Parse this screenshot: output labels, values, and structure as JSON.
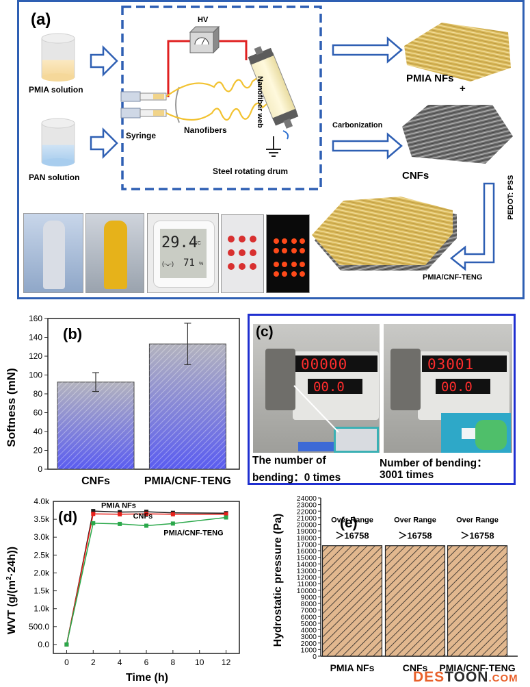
{
  "panel_a": {
    "label": "(a)",
    "pmia_solution": "PMIA solution",
    "pan_solution": "PAN solution",
    "hv": "HV",
    "syringe": "Syringe",
    "nanofibers": "Nanofibers",
    "nanofiber_web": "Nanofiber web",
    "steel_drum": "Steel rotating drum",
    "pmia_nfs": "PMIA NFs",
    "plus": "+",
    "carbonization": "Carbonization",
    "cnfs": "CNFs",
    "pedot": "PEDOT: PSS",
    "teng": "PMIA/CNF-TENG",
    "thermo_temp": "29.4",
    "thermo_temp_unit": "°C",
    "thermo_face": "(-ᴗ-)",
    "thermo_hum": "71",
    "thermo_hum_unit": "%"
  },
  "panel_c": {
    "label": "(c)",
    "left_counter": "00000",
    "left_sub": "00.0",
    "right_counter": "03001",
    "right_sub": "00.0",
    "caption_left_1": "The number of",
    "caption_left_2": "bending：0 times",
    "caption_right_1": "Number of bending：",
    "caption_right_2": "3001 times"
  },
  "chart_data": [
    {
      "panel": "(b)",
      "type": "bar",
      "categories": [
        "CNFs",
        "PMIA/CNF-TENG"
      ],
      "values": [
        92.5,
        133
      ],
      "errors": [
        10,
        22
      ],
      "ylabel": "Softness (mN)",
      "ylim": [
        0,
        160
      ],
      "yticks": [
        "0",
        "20",
        "40",
        "60",
        "80",
        "100",
        "120",
        "140",
        "160"
      ],
      "colors": {
        "top": "#b3b3be",
        "bottom": "#5a5cf0"
      }
    },
    {
      "panel": "(d)",
      "type": "line",
      "xlabel": "Time (h)",
      "ylabel": "WVT (g/(m²·24h))",
      "xlim": [
        -1,
        13
      ],
      "ylim": [
        -250,
        4000
      ],
      "xticks": [
        "0",
        "2",
        "4",
        "6",
        "8",
        "10",
        "12"
      ],
      "yticks": [
        "0.0",
        "500.0",
        "1.0k",
        "1.5k",
        "2.0k",
        "2.5k",
        "3.0k",
        "3.5k",
        "4.0k"
      ],
      "x": [
        0,
        2,
        4,
        6,
        8,
        10,
        12
      ],
      "series": [
        {
          "name": "PMIA NFs",
          "values": [
            0,
            3730,
            3700,
            3710,
            3680,
            null,
            3670
          ],
          "color": "#1a1a1a"
        },
        {
          "name": "CNFs",
          "values": [
            0,
            3650,
            3640,
            3650,
            3640,
            null,
            3640
          ],
          "color": "#e8201a"
        },
        {
          "name": "PMIA/CNF-TENG",
          "values": [
            0,
            3390,
            3370,
            3320,
            3380,
            null,
            3550
          ],
          "color": "#2aa84a"
        }
      ]
    },
    {
      "panel": "(e)",
      "type": "bar",
      "categories": [
        "PMIA NFs",
        "CNFs",
        "PMIA/CNF-TENG"
      ],
      "values": [
        16758,
        16758,
        16758
      ],
      "annotations": [
        "Over Range",
        "Over Range",
        "Over Range"
      ],
      "value_labels": [
        "＞16758",
        "＞16758",
        "＞16758"
      ],
      "ylabel": "Hydrostatic pressure (Pa)",
      "ylim": [
        0,
        24000
      ],
      "yticks": [
        "0",
        "1000",
        "2000",
        "3000",
        "4000",
        "5000",
        "6000",
        "7000",
        "8000",
        "9000",
        "10000",
        "11000",
        "12000",
        "13000",
        "14000",
        "15000",
        "16000",
        "17000",
        "18000",
        "19000",
        "20000",
        "21000",
        "22000",
        "23000",
        "24000"
      ],
      "colors": {
        "fill": "#e2b88f",
        "hatch": "#222222"
      }
    }
  ],
  "watermark": {
    "part1": "DES",
    "part2": "TOON",
    "part3": ".COM"
  }
}
